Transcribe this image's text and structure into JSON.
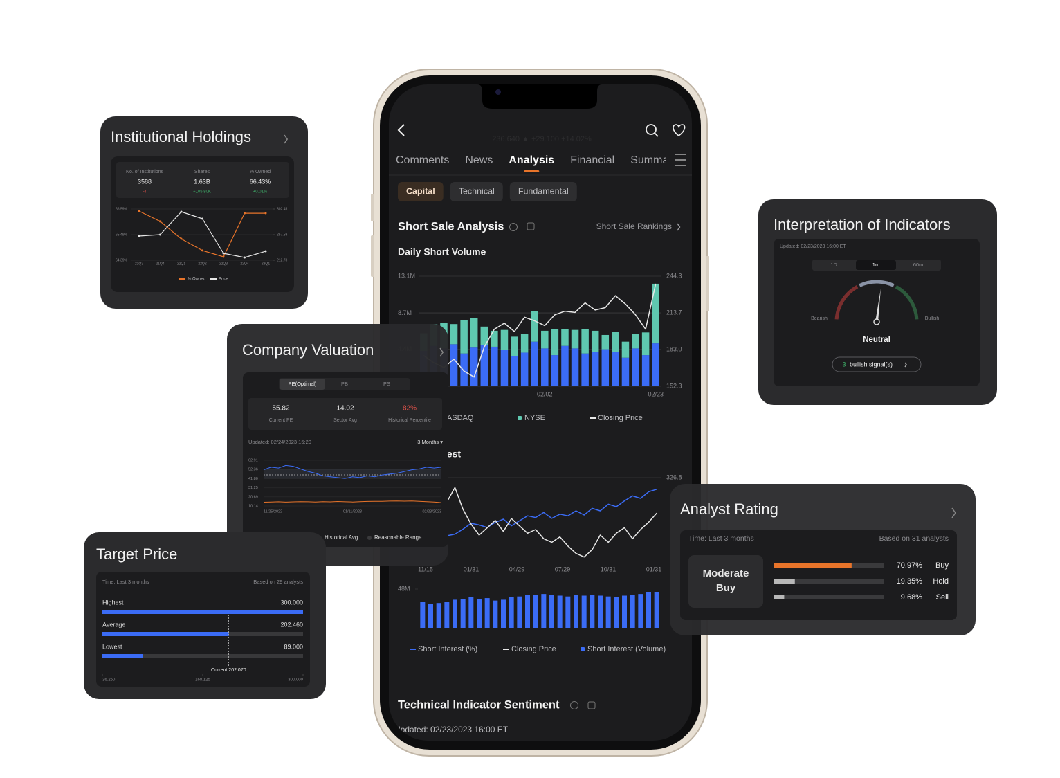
{
  "phone": {
    "ticker": "236.640 ▲ +29.100 +14.02%",
    "tabs": [
      "Comments",
      "News",
      "Analysis",
      "Financial",
      "Summary"
    ],
    "active_tab": "Analysis",
    "subtabs": [
      "Capital",
      "Technical",
      "Fundamental"
    ],
    "active_subtab": "Capital",
    "section_title": "Short Sale Analysis",
    "rankings_link": "Short Sale Rankings",
    "daily_short_volume": {
      "type": "bar",
      "title": "Daily Short Volume",
      "categories": [
        null,
        null,
        null,
        null,
        null,
        null,
        null,
        null,
        null,
        null,
        null,
        null,
        "02/02",
        null,
        null,
        null,
        null,
        null,
        null,
        null,
        null,
        null,
        null,
        "02/23"
      ],
      "ylim": [
        0,
        13.1
      ],
      "yticks": [
        {
          "value": 13.1,
          "label": "13.1M"
        },
        {
          "value": 8.7,
          "label": "8.7M"
        },
        {
          "value": 4.4,
          "label": "4.4M"
        }
      ],
      "y2lim": [
        152.3,
        244.3
      ],
      "y2ticks": [
        244.3,
        213.7,
        {
          "value": 183,
          "label": "183.0"
        },
        152.3
      ],
      "series": [
        {
          "name": "NASDAQ",
          "type": "bar",
          "color": "#3b6cf6",
          "values": [
            4.2,
            4.8,
            4.5,
            5.0,
            3.9,
            4.6,
            4.9,
            4.7,
            4.3,
            3.6,
            4.0,
            5.3,
            4.5,
            3.7,
            4.8,
            4.5,
            3.9,
            4.1,
            4.4,
            4.1,
            3.4,
            4.5,
            3.7,
            5.1
          ]
        },
        {
          "name": "NYSE",
          "type": "bar",
          "color": "#5fc8b0",
          "values": [
            2.1,
            2.6,
            3.0,
            2.4,
            4.0,
            3.5,
            2.2,
            1.9,
            2.4,
            2.3,
            2.2,
            3.6,
            2.1,
            3.1,
            2.0,
            2.2,
            2.9,
            2.5,
            1.7,
            2.4,
            1.9,
            1.7,
            2.7,
            7.1
          ]
        },
        {
          "name": "Closing Price",
          "type": "line",
          "axis": "y2",
          "color": "#e8e8e8",
          "values": [
            178,
            172,
            168,
            175,
            165,
            160,
            185,
            200,
            205,
            198,
            210,
            207,
            203,
            212,
            215,
            214,
            222,
            216,
            218,
            228,
            221,
            212,
            200,
            238
          ]
        }
      ]
    },
    "short_interest": {
      "type": "bar",
      "title": "Short Interest",
      "x_labels": [
        "11/15",
        "01/31",
        "04/29",
        "07/29",
        "10/31",
        "01/31"
      ],
      "ylim": [
        0,
        48
      ],
      "yticks": [
        {
          "value": 48,
          "label": "48M"
        }
      ],
      "y2lim": [
        100,
        326.8
      ],
      "y2ticks": [
        326.8
      ],
      "pct_ylim": [
        0,
        10
      ],
      "series": [
        {
          "name": "Short Interest (%)",
          "type": "line",
          "axis": "pct",
          "color": "#3b6cf6",
          "values": [
            4,
            4.5,
            3.5,
            3,
            3.2,
            3.8,
            4.5,
            4.3,
            4,
            4.6,
            5,
            4.2,
            4.8,
            5.4,
            5.2,
            5.8,
            5.1,
            5.6,
            5.4,
            6,
            5.5,
            6.3,
            6.0,
            6.8,
            6.5,
            7.2,
            7.8,
            7.5,
            8.3,
            8.6
          ]
        },
        {
          "name": "Closing Price",
          "type": "line",
          "axis": "y2",
          "color": "#e8e8e8",
          "values": [
            250,
            270,
            290,
            260,
            300,
            240,
            200,
            170,
            190,
            210,
            180,
            215,
            195,
            175,
            185,
            160,
            150,
            165,
            140,
            120,
            110,
            130,
            170,
            150,
            175,
            190,
            160,
            185,
            205,
            230
          ]
        },
        {
          "name": "Short Interest (Volume)",
          "type": "bar",
          "color": "#3b6cf6",
          "values": [
            32,
            30,
            31,
            32,
            35,
            36,
            38,
            36,
            37,
            34,
            35,
            38,
            39,
            41,
            41,
            42,
            41,
            40,
            39,
            41,
            40,
            41,
            40,
            39,
            38,
            40,
            41,
            42,
            44,
            44
          ]
        }
      ]
    },
    "sentiment": {
      "title": "Technical Indicator Sentiment",
      "updated": "Updated: 02/23/2023 16:00 ET"
    }
  },
  "institutional": {
    "title": "Institutional Holdings",
    "stats": [
      {
        "label": "No. of Institutions",
        "value": "3588",
        "change": "-4"
      },
      {
        "label": "Shares",
        "value": "1.63B",
        "change": "+105.80K"
      },
      {
        "label": "% Owned",
        "value": "66.43%",
        "change": "+0.01%"
      }
    ],
    "chart": {
      "type": "line",
      "categories": [
        "21Q3",
        "21Q4",
        "22Q1",
        "22Q2",
        "22Q3",
        "22Q4",
        "23Q1"
      ],
      "ylim": [
        64.39,
        66.59
      ],
      "yticks": [
        {
          "value": 66.59,
          "label": "66.59%"
        },
        {
          "value": 65.49,
          "label": "65.49%"
        },
        {
          "value": 64.39,
          "label": "64.39%"
        }
      ],
      "y2lim": [
        212.73,
        302.45
      ],
      "y2ticks": [
        302.45,
        257.59,
        212.73
      ],
      "series": [
        {
          "name": "% Owned",
          "color": "#e8742a",
          "values": [
            66.5,
            66.06,
            65.31,
            64.81,
            64.54,
            66.41,
            66.41
          ]
        },
        {
          "name": "Price",
          "axis": "y2",
          "color": "#e6e6e6",
          "values": [
            255.2,
            257.6,
            297.6,
            285.5,
            224.9,
            217.6,
            228.5
          ]
        }
      ]
    }
  },
  "valuation": {
    "title": "Company Valuation",
    "tabs": [
      "PE(Optimal)",
      "PB",
      "PS"
    ],
    "active_tab": "PE(Optimal)",
    "metrics": [
      {
        "value": "55.82",
        "label": "Current PE",
        "color": "#e6e6e6"
      },
      {
        "value": "14.02",
        "label": "Sector Avg",
        "color": "#e6e6e6"
      },
      {
        "value": "82%",
        "label": "Historical Percentile",
        "color": "#e5534b"
      }
    ],
    "updated": "Updated:  02/24/2023 15:20",
    "range_select": "3 Months ▾",
    "chart": {
      "type": "line",
      "x_labels": [
        "11/25/2022",
        "01/11/2023",
        "02/23/2023"
      ],
      "ylim": [
        10.14,
        62.91
      ],
      "yticks": [
        62.91,
        52.36,
        {
          "value": 41.8,
          "label": "41.80"
        },
        31.25,
        20.69,
        10.14
      ],
      "series": [
        {
          "name": "PE",
          "color": "#3b6cf6",
          "values": [
            52,
            55,
            54,
            57,
            56,
            53,
            50,
            48,
            45,
            44,
            43,
            42,
            44,
            43,
            45,
            44,
            46,
            47,
            48,
            50,
            52,
            53,
            55,
            54,
            55
          ]
        },
        {
          "name": "Sector Avg",
          "color": "#e8742a",
          "values": [
            14.5,
            14.8,
            15,
            14.6,
            14.9,
            15.2,
            15,
            14.7,
            15.1,
            14.9,
            15.3,
            15,
            14.8,
            15.1,
            15.4,
            15.6,
            15.5,
            15.8,
            16,
            15.7,
            15.9,
            15.6,
            15.2,
            14.8,
            14.02
          ]
        }
      ],
      "historical_avg": {
        "name": "Historical Avg",
        "color": "#9a9a9e",
        "value": 46.1
      },
      "reasonable_range": {
        "name": "Reasonable Range",
        "color": "#8fa4d8",
        "values": [
          41.8,
          52.36
        ]
      }
    }
  },
  "target": {
    "title": "Target Price",
    "time": "Time: Last 3 months",
    "based": "Based on 29 analysts",
    "color": "#3b6cf6",
    "xlim": [
      36.25,
      300
    ],
    "xticks": [
      {
        "value": 36.25,
        "label": "36.250"
      },
      168.125,
      {
        "value": 300,
        "label": "300.000"
      }
    ],
    "categories": [
      "Highest",
      "Average",
      "Lowest"
    ],
    "values": [
      300,
      202.46,
      89
    ],
    "value_labels": [
      "300.000",
      "202.460",
      "89.000"
    ],
    "current": {
      "value": 202.07,
      "label": "Current 202.070"
    }
  },
  "indicators": {
    "title": "Interpretation of Indicators",
    "updated": "Updated: 02/23/2023 16:00 ET",
    "tabs": [
      "1D",
      "1m",
      "60m"
    ],
    "active_tab": "1m",
    "bearish": "Bearish",
    "bullish": "Bullish",
    "verdict": "Neutral",
    "signal_count": "3",
    "signal_text": "bullish signal(s)"
  },
  "analyst": {
    "title": "Analyst Rating",
    "time": "Time: Last 3 months",
    "based": "Based on 31 analysts",
    "rating": "Moderate Buy",
    "xlim": [
      0,
      100
    ],
    "categories": [
      "Buy",
      "Hold",
      "Sell"
    ],
    "values": [
      70.97,
      19.35,
      9.68
    ],
    "value_labels": [
      "70.97%",
      "19.35%",
      "9.68%"
    ],
    "colors": [
      "#e8742a",
      "#b8b8b8",
      "#b8b8b8"
    ]
  }
}
